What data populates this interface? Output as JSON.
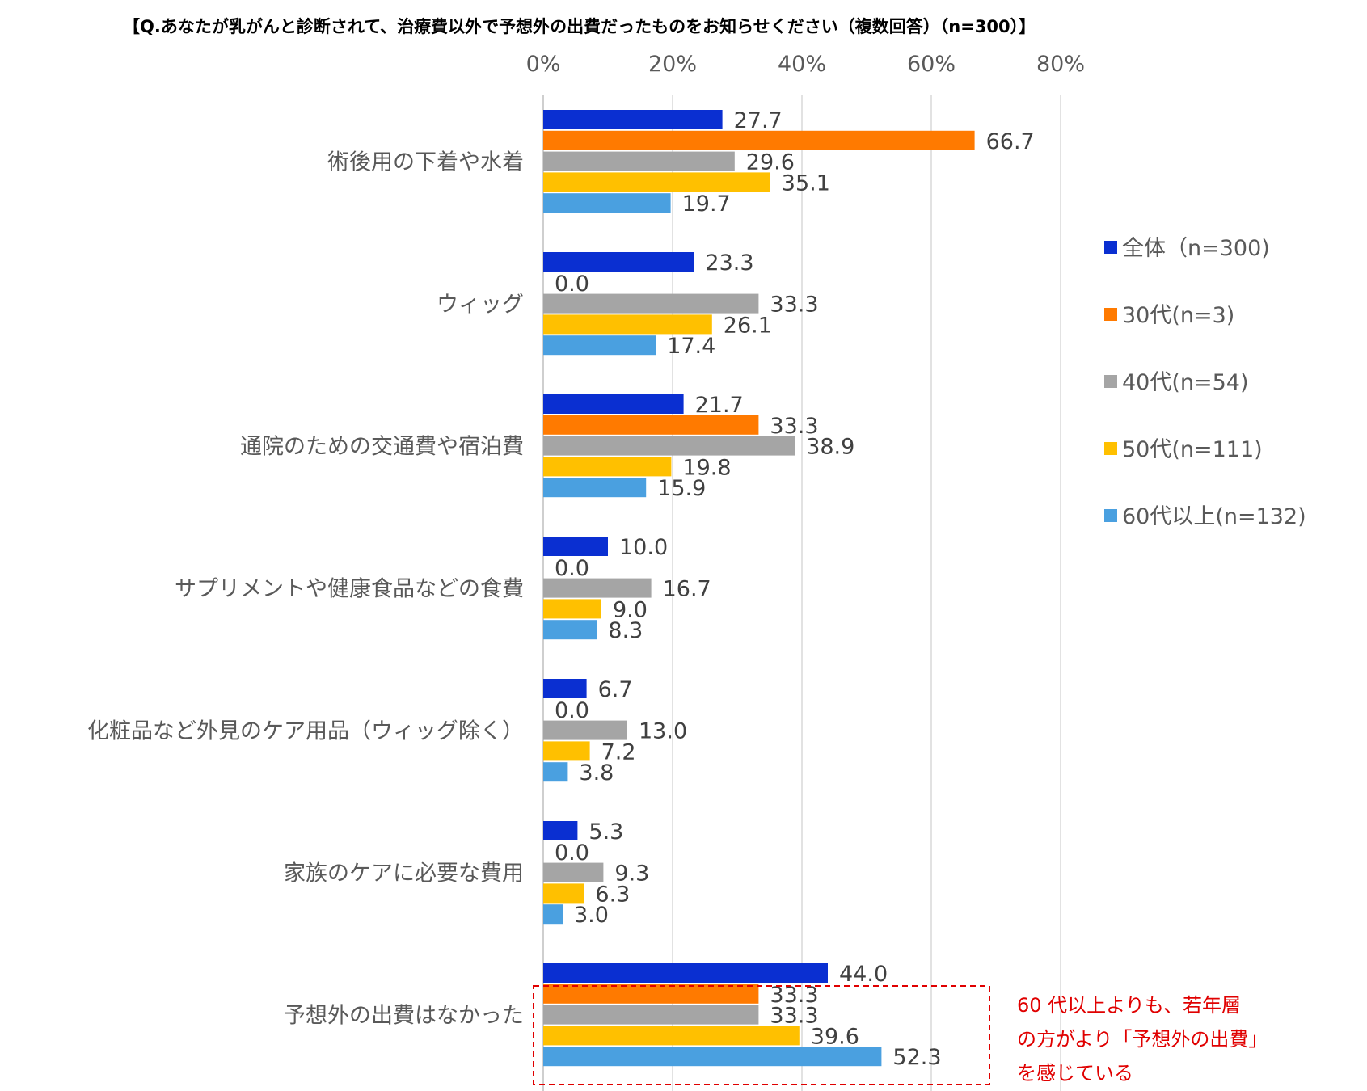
{
  "chart_data": {
    "type": "bar",
    "orientation": "horizontal",
    "title": "【Q.あなたが乳がんと診断されて、治療費以外で予想外の出費だったものをお知らせください（複数回答）（n=300）】",
    "xlim": [
      0,
      80
    ],
    "ticks": [
      "0%",
      "20%",
      "40%",
      "60%",
      "80%"
    ],
    "tick_values": [
      0,
      20,
      40,
      60,
      80
    ],
    "categories": [
      "術後用の下着や水着",
      "ウィッグ",
      "通院のための交通費や宿泊費",
      "サプリメントや健康食品などの食費",
      "化粧品など外見のケア用品（ウィッグ除く）",
      "家族のケアに必要な費用",
      "予想外の出費はなかった"
    ],
    "series": [
      {
        "name": "全体（n=300)",
        "color": "#0a2fd1",
        "values": [
          27.7,
          23.3,
          21.7,
          10.0,
          6.7,
          5.3,
          44.0
        ],
        "labels": [
          "27.7",
          "23.3",
          "21.7",
          "10.0",
          "6.7",
          "5.3",
          "44.0"
        ]
      },
      {
        "name": "30代(n=3)",
        "color": "#ff7a00",
        "values": [
          66.7,
          0.0,
          33.3,
          0.0,
          0.0,
          0.0,
          33.3
        ],
        "labels": [
          "66.7",
          "0.0",
          "33.3",
          "0.0",
          "0.0",
          "0.0",
          "33.3"
        ]
      },
      {
        "name": "40代(n=54)",
        "color": "#a5a5a5",
        "values": [
          29.6,
          33.3,
          38.9,
          16.7,
          13.0,
          9.3,
          33.3
        ],
        "labels": [
          "29.6",
          "33.3",
          "38.9",
          "16.7",
          "13.0",
          "9.3",
          "33.3"
        ]
      },
      {
        "name": "50代(n=111)",
        "color": "#ffc000",
        "values": [
          35.1,
          26.1,
          19.8,
          9.0,
          7.2,
          6.3,
          39.6
        ],
        "labels": [
          "35.1",
          "26.1",
          "19.8",
          "9.0",
          "7.2",
          "6.3",
          "39.6"
        ]
      },
      {
        "name": "60代以上(n=132)",
        "color": "#4aa0e0",
        "values": [
          19.7,
          17.4,
          15.9,
          8.3,
          3.8,
          3.0,
          52.3
        ],
        "labels": [
          "19.7",
          "17.4",
          "15.9",
          "8.3",
          "3.8",
          "3.0",
          "52.3"
        ]
      }
    ],
    "legend_position": "right",
    "gridlines": true,
    "annotation": {
      "lines": [
        "60 代以上よりも、若年層",
        "の方がより「予想外の出費」",
        "を感じている"
      ],
      "color": "#e00000",
      "target_category": "予想外の出費はなかった"
    }
  }
}
